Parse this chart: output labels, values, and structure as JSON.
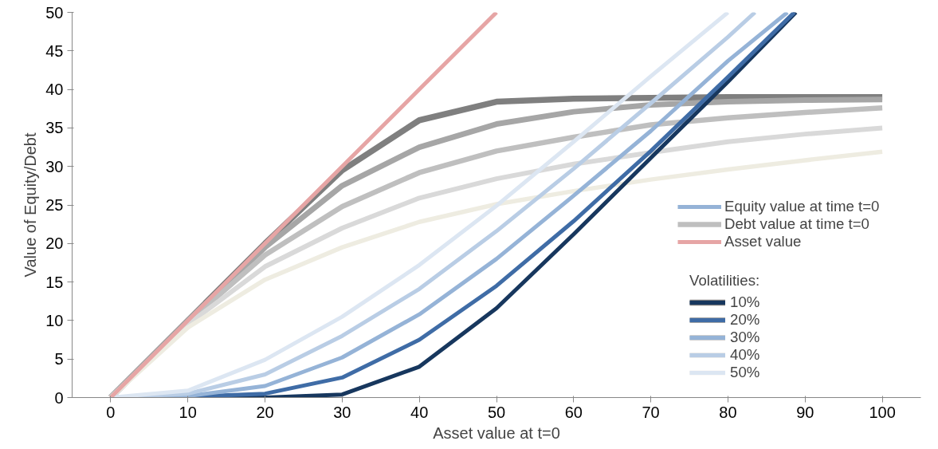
{
  "chart_data": {
    "type": "line",
    "xlabel": "Asset value at t=0",
    "ylabel": "Value of Equity/Debt",
    "x": [
      0,
      10,
      20,
      30,
      40,
      50,
      60,
      70,
      80,
      90,
      100
    ],
    "xlim": [
      -5,
      105
    ],
    "xticks": [
      0,
      10,
      20,
      30,
      40,
      50,
      60,
      70,
      80,
      90,
      100
    ],
    "ylim": [
      0,
      50
    ],
    "yticks": [
      0,
      5,
      10,
      15,
      20,
      25,
      30,
      35,
      40,
      45,
      50
    ],
    "grid": false,
    "legend": "right",
    "legend_title": "Volatilities:",
    "marker": "none",
    "line_style": "solid",
    "annotations": [
      "Equity value at time t=0",
      "Debt value at time t=0"
    ],
    "series": [
      {
        "color": "#7f7f7f",
        "values": [
          0,
          10,
          20,
          29.5,
          36.0,
          38.4,
          38.8,
          38.9,
          39.0,
          39.0,
          39.0
        ]
      },
      {
        "color": "#a6a6a6",
        "values": [
          0,
          10,
          19.5,
          27.5,
          32.5,
          35.5,
          37.1,
          38.0,
          38.4,
          38.6,
          38.7
        ]
      },
      {
        "color": "#bfbfbf",
        "values": [
          0,
          9.8,
          18.5,
          24.8,
          29.2,
          32.0,
          33.8,
          35.4,
          36.3,
          37.0,
          37.6
        ]
      },
      {
        "color": "#d9d9d9",
        "values": [
          0,
          9.5,
          17.0,
          22.0,
          25.9,
          28.4,
          30.3,
          31.8,
          33.2,
          34.2,
          35.0
        ]
      },
      {
        "color": "#eeece1",
        "values": [
          0,
          9.1,
          15.3,
          19.5,
          22.8,
          25.1,
          26.8,
          28.3,
          29.6,
          30.8,
          31.9
        ]
      },
      {
        "name": "10%",
        "color": "#17375e",
        "x": [
          0,
          10,
          20,
          30,
          40,
          50,
          60,
          70,
          80,
          88.8
        ],
        "values": [
          0,
          0,
          0,
          0.4,
          4.0,
          11.6,
          21.2,
          31.1,
          41.0,
          50
        ]
      },
      {
        "name": "20%",
        "color": "#3f6ca6",
        "x": [
          0,
          10,
          20,
          30,
          40,
          50,
          60,
          70,
          80,
          88.6
        ],
        "values": [
          0,
          0.1,
          0.5,
          2.6,
          7.5,
          14.5,
          22.9,
          32.0,
          41.6,
          50
        ]
      },
      {
        "name": "30%",
        "color": "#95b3d7",
        "x": [
          0,
          10,
          20,
          30,
          40,
          50,
          60,
          70,
          80,
          87.7
        ],
        "values": [
          0,
          0.2,
          1.5,
          5.2,
          10.8,
          18.0,
          26.2,
          34.6,
          43.7,
          50
        ]
      },
      {
        "name": "40%",
        "color": "#b9cde5",
        "x": [
          0,
          10,
          20,
          30,
          40,
          50,
          60,
          70,
          80,
          83.5
        ],
        "values": [
          0,
          0.5,
          3.0,
          8.0,
          14.1,
          21.6,
          29.7,
          38.2,
          46.8,
          50
        ]
      },
      {
        "name": "50%",
        "color": "#dce6f2",
        "x": [
          0,
          10,
          20,
          30,
          40,
          50,
          60,
          70,
          80
        ],
        "values": [
          0,
          0.9,
          4.9,
          10.5,
          17.2,
          24.9,
          33.2,
          41.7,
          50
        ]
      },
      {
        "name": "Asset value",
        "color": "#e6a5a5",
        "x": [
          0,
          10,
          20,
          30,
          40,
          50
        ],
        "values": [
          0,
          10,
          20,
          30,
          40,
          50
        ]
      }
    ]
  }
}
